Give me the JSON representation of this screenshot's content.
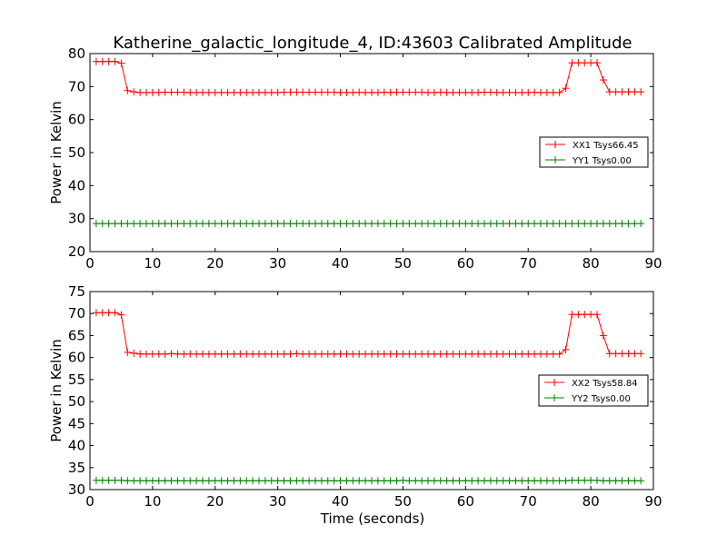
{
  "colors": {
    "xx": "#ff0000",
    "yy": "#008000"
  },
  "chart_data": [
    {
      "type": "line",
      "title": "Katherine_galactic_longitude_4, ID:43603 Calibrated Amplitude",
      "xlabel": "",
      "ylabel": "Power in Kelvin",
      "xlim": [
        0,
        90
      ],
      "ylim": [
        20,
        80
      ],
      "xticks": [
        "0",
        "10",
        "20",
        "30",
        "40",
        "50",
        "60",
        "70",
        "80",
        "90"
      ],
      "yticks": [
        "20",
        "30",
        "40",
        "50",
        "60",
        "70",
        "80"
      ],
      "legend_position": "right",
      "marker": "+",
      "series": [
        {
          "name": "XX1 Tsys66.45",
          "x": [
            1,
            2,
            3,
            4,
            5,
            6,
            7,
            8,
            9,
            10,
            11,
            12,
            13,
            14,
            15,
            16,
            17,
            18,
            19,
            20,
            21,
            22,
            23,
            24,
            25,
            26,
            27,
            28,
            29,
            30,
            31,
            32,
            33,
            34,
            35,
            36,
            37,
            38,
            39,
            40,
            41,
            42,
            43,
            44,
            45,
            46,
            47,
            48,
            49,
            50,
            51,
            52,
            53,
            54,
            55,
            56,
            57,
            58,
            59,
            60,
            61,
            62,
            63,
            64,
            65,
            66,
            67,
            68,
            69,
            70,
            71,
            72,
            73,
            74,
            75,
            76,
            77,
            78,
            79,
            80,
            81,
            82,
            83,
            84,
            85,
            86,
            87,
            88
          ],
          "y": [
            77.6,
            77.6,
            77.6,
            77.6,
            77.1,
            68.8,
            68.4,
            68.2,
            68.2,
            68.2,
            68.2,
            68.3,
            68.3,
            68.3,
            68.3,
            68.2,
            68.2,
            68.2,
            68.2,
            68.2,
            68.2,
            68.2,
            68.2,
            68.2,
            68.2,
            68.2,
            68.2,
            68.2,
            68.2,
            68.2,
            68.3,
            68.3,
            68.3,
            68.3,
            68.3,
            68.3,
            68.3,
            68.3,
            68.3,
            68.2,
            68.2,
            68.2,
            68.3,
            68.2,
            68.2,
            68.2,
            68.3,
            68.2,
            68.3,
            68.3,
            68.3,
            68.3,
            68.3,
            68.2,
            68.2,
            68.3,
            68.2,
            68.2,
            68.2,
            68.2,
            68.2,
            68.2,
            68.3,
            68.3,
            68.2,
            68.2,
            68.2,
            68.2,
            68.2,
            68.2,
            68.3,
            68.2,
            68.2,
            68.2,
            68.2,
            69.5,
            77.2,
            77.2,
            77.2,
            77.2,
            77.2,
            72.0,
            68.4,
            68.4,
            68.4,
            68.4,
            68.4,
            68.4
          ]
        },
        {
          "name": "YY1 Tsys0.00",
          "x": [
            1,
            2,
            3,
            4,
            5,
            6,
            7,
            8,
            9,
            10,
            11,
            12,
            13,
            14,
            15,
            16,
            17,
            18,
            19,
            20,
            21,
            22,
            23,
            24,
            25,
            26,
            27,
            28,
            29,
            30,
            31,
            32,
            33,
            34,
            35,
            36,
            37,
            38,
            39,
            40,
            41,
            42,
            43,
            44,
            45,
            46,
            47,
            48,
            49,
            50,
            51,
            52,
            53,
            54,
            55,
            56,
            57,
            58,
            59,
            60,
            61,
            62,
            63,
            64,
            65,
            66,
            67,
            68,
            69,
            70,
            71,
            72,
            73,
            74,
            75,
            76,
            77,
            78,
            79,
            80,
            81,
            82,
            83,
            84,
            85,
            86,
            87,
            88
          ],
          "y": [
            28.5,
            28.5,
            28.5,
            28.5,
            28.5,
            28.5,
            28.5,
            28.5,
            28.5,
            28.5,
            28.5,
            28.5,
            28.5,
            28.5,
            28.5,
            28.5,
            28.5,
            28.5,
            28.5,
            28.5,
            28.5,
            28.5,
            28.5,
            28.5,
            28.5,
            28.5,
            28.5,
            28.5,
            28.5,
            28.5,
            28.5,
            28.5,
            28.5,
            28.5,
            28.5,
            28.5,
            28.5,
            28.5,
            28.5,
            28.5,
            28.5,
            28.5,
            28.5,
            28.5,
            28.5,
            28.5,
            28.5,
            28.5,
            28.5,
            28.5,
            28.5,
            28.5,
            28.5,
            28.5,
            28.5,
            28.5,
            28.5,
            28.5,
            28.5,
            28.5,
            28.5,
            28.5,
            28.5,
            28.5,
            28.5,
            28.5,
            28.5,
            28.5,
            28.5,
            28.5,
            28.5,
            28.5,
            28.5,
            28.5,
            28.5,
            28.5,
            28.5,
            28.5,
            28.5,
            28.5,
            28.5,
            28.5,
            28.5,
            28.5,
            28.5,
            28.5,
            28.5,
            28.5
          ]
        }
      ]
    },
    {
      "type": "line",
      "title": "",
      "xlabel": "Time (seconds)",
      "ylabel": "Power in Kelvin",
      "xlim": [
        0,
        90
      ],
      "ylim": [
        30,
        75
      ],
      "xticks": [
        "0",
        "10",
        "20",
        "30",
        "40",
        "50",
        "60",
        "70",
        "80",
        "90"
      ],
      "yticks": [
        "30",
        "35",
        "40",
        "45",
        "50",
        "55",
        "60",
        "65",
        "70",
        "75"
      ],
      "legend_position": "right",
      "marker": "+",
      "series": [
        {
          "name": "XX2 Tsys58.84",
          "x": [
            1,
            2,
            3,
            4,
            5,
            6,
            7,
            8,
            9,
            10,
            11,
            12,
            13,
            14,
            15,
            16,
            17,
            18,
            19,
            20,
            21,
            22,
            23,
            24,
            25,
            26,
            27,
            28,
            29,
            30,
            31,
            32,
            33,
            34,
            35,
            36,
            37,
            38,
            39,
            40,
            41,
            42,
            43,
            44,
            45,
            46,
            47,
            48,
            49,
            50,
            51,
            52,
            53,
            54,
            55,
            56,
            57,
            58,
            59,
            60,
            61,
            62,
            63,
            64,
            65,
            66,
            67,
            68,
            69,
            70,
            71,
            72,
            73,
            74,
            75,
            76,
            77,
            78,
            79,
            80,
            81,
            82,
            83,
            84,
            85,
            86,
            87,
            88
          ],
          "y": [
            70.2,
            70.2,
            70.2,
            70.2,
            69.7,
            61.2,
            61.0,
            60.8,
            60.8,
            60.8,
            60.8,
            60.8,
            60.9,
            60.8,
            60.8,
            60.8,
            60.8,
            60.8,
            60.8,
            60.8,
            60.8,
            60.8,
            60.8,
            60.8,
            60.8,
            60.8,
            60.8,
            60.8,
            60.8,
            60.8,
            60.8,
            60.8,
            60.9,
            60.8,
            60.8,
            60.8,
            60.8,
            60.8,
            60.8,
            60.8,
            60.8,
            60.8,
            60.8,
            60.8,
            60.8,
            60.8,
            60.8,
            60.8,
            60.8,
            60.8,
            60.8,
            60.8,
            60.8,
            60.8,
            60.8,
            60.8,
            60.8,
            60.8,
            60.8,
            60.8,
            60.8,
            60.8,
            60.8,
            60.8,
            60.8,
            60.8,
            60.8,
            60.8,
            60.8,
            60.8,
            60.8,
            60.8,
            60.8,
            60.8,
            60.8,
            61.8,
            69.8,
            69.8,
            69.8,
            69.8,
            69.8,
            65.0,
            60.9,
            60.9,
            60.9,
            60.9,
            60.9,
            60.9
          ]
        },
        {
          "name": "YY2 Tsys0.00",
          "x": [
            1,
            2,
            3,
            4,
            5,
            6,
            7,
            8,
            9,
            10,
            11,
            12,
            13,
            14,
            15,
            16,
            17,
            18,
            19,
            20,
            21,
            22,
            23,
            24,
            25,
            26,
            27,
            28,
            29,
            30,
            31,
            32,
            33,
            34,
            35,
            36,
            37,
            38,
            39,
            40,
            41,
            42,
            43,
            44,
            45,
            46,
            47,
            48,
            49,
            50,
            51,
            52,
            53,
            54,
            55,
            56,
            57,
            58,
            59,
            60,
            61,
            62,
            63,
            64,
            65,
            66,
            67,
            68,
            69,
            70,
            71,
            72,
            73,
            74,
            75,
            76,
            77,
            78,
            79,
            80,
            81,
            82,
            83,
            84,
            85,
            86,
            87,
            88
          ],
          "y": [
            32.1,
            32.1,
            32.1,
            32.1,
            32.1,
            32.0,
            32.0,
            32.0,
            32.0,
            32.0,
            32.0,
            32.0,
            32.0,
            32.0,
            32.0,
            32.0,
            32.0,
            32.0,
            32.0,
            32.0,
            32.0,
            32.0,
            32.0,
            32.0,
            32.0,
            32.0,
            32.0,
            32.0,
            32.0,
            32.0,
            32.0,
            32.0,
            32.0,
            32.0,
            32.0,
            32.0,
            32.0,
            32.0,
            32.0,
            32.0,
            32.0,
            32.0,
            32.0,
            32.0,
            32.0,
            32.0,
            32.0,
            32.0,
            32.0,
            32.1,
            32.0,
            32.0,
            32.0,
            32.0,
            32.0,
            32.0,
            32.0,
            32.0,
            32.0,
            32.0,
            32.0,
            32.0,
            32.0,
            32.0,
            32.0,
            32.0,
            32.0,
            32.0,
            32.0,
            32.0,
            32.0,
            32.0,
            32.0,
            32.0,
            32.0,
            32.0,
            32.1,
            32.1,
            32.1,
            32.1,
            32.1,
            32.0,
            32.0,
            32.0,
            32.0,
            32.0,
            32.0,
            32.0
          ]
        }
      ]
    }
  ]
}
